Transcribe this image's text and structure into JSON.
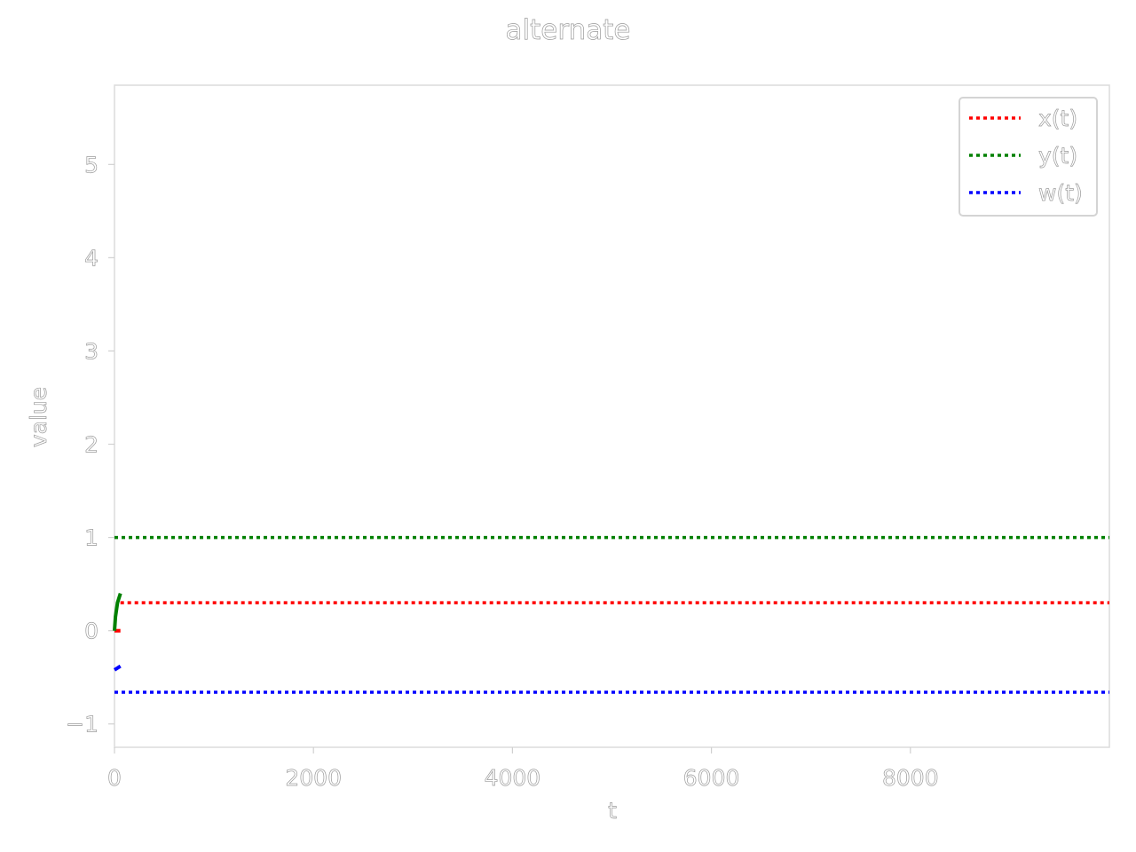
{
  "chart_data": {
    "type": "line",
    "title": "alternate",
    "xlabel": "t",
    "ylabel": "value",
    "xlim": [
      0,
      10000
    ],
    "ylim": [
      -1.25,
      5.85
    ],
    "xticks": [
      0,
      2000,
      4000,
      6000,
      8000
    ],
    "xtick_labels": [
      "0",
      "2000",
      "4000",
      "6000",
      "8000"
    ],
    "yticks": [
      -1,
      0,
      1,
      2,
      3,
      4,
      5
    ],
    "ytick_labels": [
      "−1",
      "0",
      "1",
      "2",
      "3",
      "4",
      "5"
    ],
    "grid": false,
    "legend_position": "top-right",
    "series": [
      {
        "name": "x(t)",
        "color": "#ff0000",
        "style": "dotted",
        "segments": [
          {
            "style": "solid",
            "x": [
              0,
              60
            ],
            "y": [
              0,
              0
            ]
          },
          {
            "style": "dotted",
            "x": [
              60,
              10000
            ],
            "y": [
              0.3,
              0.3
            ]
          }
        ]
      },
      {
        "name": "y(t)",
        "color": "#008000",
        "style": "dotted",
        "segments": [
          {
            "style": "solid",
            "x": [
              0,
              10,
              30,
              60
            ],
            "y": [
              0.0,
              0.15,
              0.3,
              0.4
            ]
          },
          {
            "style": "dotted",
            "x": [
              0,
              10000
            ],
            "y": [
              1.0,
              1.0
            ]
          }
        ]
      },
      {
        "name": "w(t)",
        "color": "#0000ff",
        "style": "dotted",
        "segments": [
          {
            "style": "solid",
            "x": [
              0,
              30,
              60
            ],
            "y": [
              -0.42,
              -0.4,
              -0.38
            ]
          },
          {
            "style": "dotted",
            "x": [
              0,
              10000
            ],
            "y": [
              -0.66,
              -0.66
            ]
          }
        ]
      }
    ]
  }
}
